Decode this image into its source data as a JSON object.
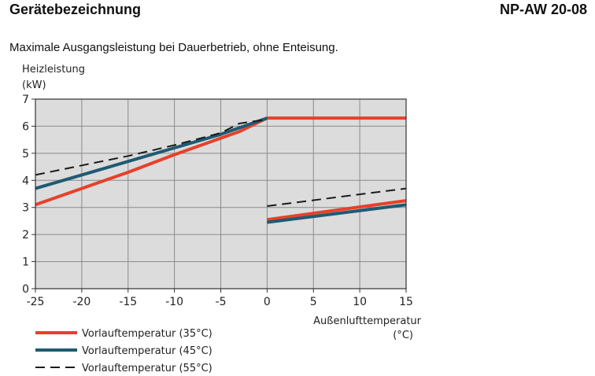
{
  "header": {
    "title": "Gerätebezeichnung",
    "model": "NP-AW 20-08"
  },
  "subtitle": "Maximale Ausgangsleistung bei Dauerbetrieb, ohne Enteisung.",
  "chart_data": {
    "type": "line",
    "ylabel_line1": "Heizleistung",
    "ylabel_line2": "(kW)",
    "xlabel_line1": "Außenlufttemperatur",
    "xlabel_line2": "(°C)",
    "xlim": [
      -25,
      15
    ],
    "ylim": [
      0,
      7
    ],
    "xticks": [
      -25,
      -20,
      -15,
      -10,
      -5,
      0,
      5,
      10,
      15
    ],
    "yticks": [
      0,
      1,
      2,
      3,
      4,
      5,
      6,
      7
    ],
    "grid": true,
    "background": "#dcdcdc",
    "legend_position": "bottom-left",
    "series": [
      {
        "name": "Vorlauftemperatur (35°C)",
        "color": "#e8402a",
        "style": "solid",
        "segments": [
          [
            [
              -25,
              3.1
            ],
            [
              -20,
              3.7
            ],
            [
              -15,
              4.3
            ],
            [
              -10,
              4.95
            ],
            [
              -3,
              5.8
            ],
            [
              0,
              6.3
            ],
            [
              15,
              6.3
            ]
          ],
          [
            [
              0,
              2.55
            ],
            [
              15,
              3.25
            ]
          ]
        ]
      },
      {
        "name": "Vorlauftemperatur (45°C)",
        "color": "#1f5a73",
        "style": "solid",
        "segments": [
          [
            [
              -25,
              3.7
            ],
            [
              -20,
              4.2
            ],
            [
              -15,
              4.7
            ],
            [
              -10,
              5.2
            ],
            [
              -5,
              5.7
            ],
            [
              0,
              6.3
            ]
          ],
          [
            [
              0,
              2.45
            ],
            [
              15,
              3.1
            ]
          ]
        ]
      },
      {
        "name": "Vorlauftemperatur (55°C)",
        "color": "#1a1a1a",
        "style": "dashed",
        "segments": [
          [
            [
              -25,
              4.2
            ],
            [
              -20,
              4.55
            ],
            [
              -15,
              4.9
            ],
            [
              -10,
              5.3
            ],
            [
              -5,
              5.75
            ],
            [
              -3,
              6.1
            ],
            [
              0,
              6.25
            ]
          ],
          [
            [
              0,
              3.05
            ],
            [
              15,
              3.7
            ]
          ]
        ]
      }
    ]
  }
}
